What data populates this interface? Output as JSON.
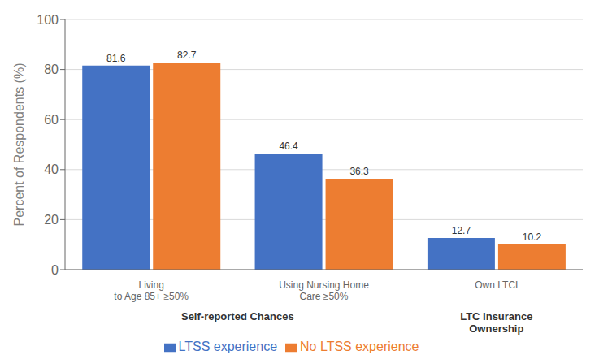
{
  "chart_data": {
    "type": "bar",
    "categories": [
      "Living\nto Age 85+ ≥50%",
      "Using Nursing Home\nCare ≥50%",
      "Own LTCI"
    ],
    "series": [
      {
        "name": "LTSS experience",
        "color": "#4472C4",
        "values": [
          81.6,
          46.4,
          12.7
        ]
      },
      {
        "name": "No LTSS experience",
        "color": "#ED7D31",
        "values": [
          82.7,
          36.3,
          10.2
        ]
      }
    ],
    "ylabel": "Percent of Respondents (%)",
    "ylim": [
      0,
      100
    ],
    "yticks": [
      0,
      20,
      40,
      60,
      80,
      100
    ],
    "grid": true,
    "legend": "bottom",
    "data_labels": true,
    "annotations": [
      {
        "text": "Self-reported Chances",
        "categories": [
          "Living\nto Age 85+ ≥50%",
          "Using Nursing Home\nCare ≥50%"
        ]
      },
      {
        "text": "LTC Insurance\nOwnership",
        "categories": [
          "Own LTCI"
        ]
      }
    ]
  }
}
